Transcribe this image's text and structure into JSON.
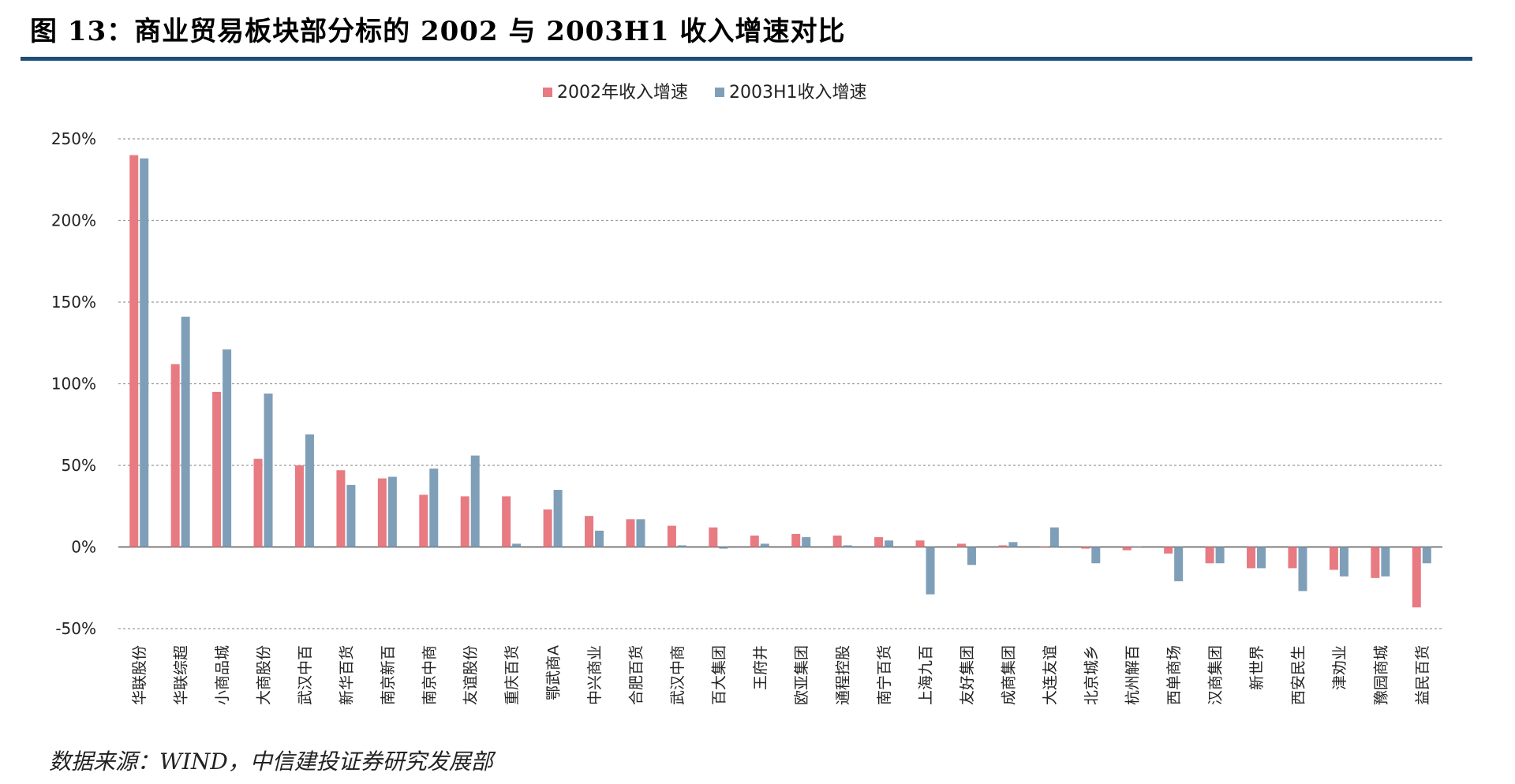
{
  "title": "图 13：商业贸易板块部分标的 2002 与 2003H1 收入增速对比",
  "source": "数据来源：WIND，中信建投证券研究发展部",
  "chart_data": {
    "type": "bar",
    "ylim": [
      -50,
      250
    ],
    "yticks": [
      -50,
      0,
      50,
      100,
      150,
      200,
      250
    ],
    "ytick_labels": [
      "-50%",
      "0%",
      "50%",
      "100%",
      "150%",
      "200%",
      "250%"
    ],
    "grid": true,
    "legend_position": "top-center",
    "categories": [
      "华联股份",
      "华联综超",
      "小商品城",
      "大商股份",
      "武汉中百",
      "新华百货",
      "南京新百",
      "南京中商",
      "友谊股份",
      "重庆百货",
      "鄂武商A",
      "中兴商业",
      "合肥百货",
      "武汉中商",
      "百大集团",
      "王府井",
      "欧亚集团",
      "通程控股",
      "南宁百货",
      "上海九百",
      "友好集团",
      "成商集团",
      "大连友谊",
      "北京城乡",
      "杭州解百",
      "西单商场",
      "汉商集团",
      "新世界",
      "西安民生",
      "津劝业",
      "豫园商城",
      "益民百货"
    ],
    "series": [
      {
        "name": "2002年收入增速",
        "color": "#e87a82",
        "values": [
          240,
          112,
          95,
          54,
          50,
          47,
          42,
          32,
          31,
          31,
          23,
          19,
          17,
          13,
          12,
          7,
          8,
          7,
          6,
          4,
          2,
          1,
          0,
          -1,
          -2,
          -4,
          -10,
          -13,
          -13,
          -14,
          -19,
          -37
        ]
      },
      {
        "name": "2003H1收入增速",
        "color": "#7f9fb8",
        "values": [
          238,
          141,
          121,
          94,
          69,
          38,
          43,
          48,
          56,
          2,
          35,
          10,
          17,
          1,
          -1,
          2,
          6,
          1,
          4,
          -29,
          -11,
          3,
          12,
          -10,
          0,
          -21,
          -10,
          -13,
          -27,
          -18,
          -18,
          -10
        ]
      }
    ]
  }
}
